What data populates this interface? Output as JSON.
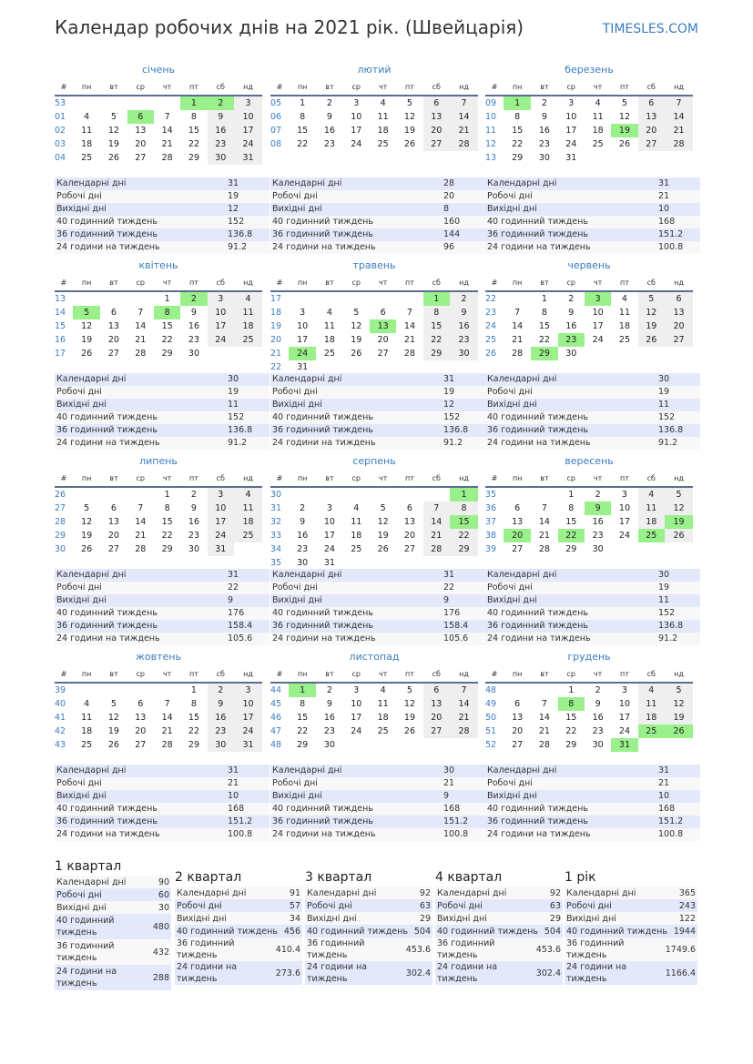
{
  "header": {
    "title": "Календар робочих днів на 2021 рік. (Швейцарія)",
    "brand": "TIMESLES.COM"
  },
  "colors": {
    "holiday": "#9af08a",
    "weekend": "#efefef",
    "accent": "#3a7cc0"
  },
  "weekday_header": [
    "#",
    "пн",
    "вт",
    "ср",
    "чт",
    "пт",
    "сб",
    "нд"
  ],
  "stat_labels": [
    "Календарні дні",
    "Робочі дні",
    "Вихідні дні",
    "40 годинний тиждень",
    "36 годинний тиждень",
    "24 години на тиждень"
  ],
  "months": [
    {
      "name": "січень",
      "start_weekday": 5,
      "days": 31,
      "weeks": [
        "53",
        "01",
        "02",
        "03",
        "04"
      ],
      "holidays": [
        1,
        2,
        6
      ],
      "stats": [
        "31",
        "19",
        "12",
        "152",
        "136.8",
        "91.2"
      ]
    },
    {
      "name": "лютий",
      "start_weekday": 1,
      "days": 28,
      "weeks": [
        "05",
        "06",
        "07",
        "08"
      ],
      "holidays": [],
      "stats": [
        "28",
        "20",
        "8",
        "160",
        "144",
        "96"
      ]
    },
    {
      "name": "березень",
      "start_weekday": 1,
      "days": 31,
      "weeks": [
        "09",
        "10",
        "11",
        "12",
        "13"
      ],
      "holidays": [
        1,
        19
      ],
      "stats": [
        "31",
        "21",
        "10",
        "168",
        "151.2",
        "100.8"
      ]
    },
    {
      "name": "квітень",
      "start_weekday": 4,
      "days": 30,
      "weeks": [
        "13",
        "14",
        "15",
        "16",
        "17"
      ],
      "holidays": [
        2,
        5,
        8
      ],
      "stats": [
        "30",
        "19",
        "11",
        "152",
        "136.8",
        "91.2"
      ]
    },
    {
      "name": "травень",
      "start_weekday": 6,
      "days": 31,
      "weeks": [
        "17",
        "18",
        "19",
        "20",
        "21",
        "22"
      ],
      "holidays": [
        1,
        13,
        24
      ],
      "stats": [
        "31",
        "19",
        "12",
        "152",
        "136.8",
        "91.2"
      ]
    },
    {
      "name": "червень",
      "start_weekday": 2,
      "days": 30,
      "weeks": [
        "22",
        "23",
        "24",
        "25",
        "26"
      ],
      "holidays": [
        3,
        23,
        29
      ],
      "stats": [
        "30",
        "19",
        "11",
        "152",
        "136.8",
        "91.2"
      ]
    },
    {
      "name": "липень",
      "start_weekday": 4,
      "days": 31,
      "weeks": [
        "26",
        "27",
        "28",
        "29",
        "30"
      ],
      "holidays": [],
      "stats": [
        "31",
        "22",
        "9",
        "176",
        "158.4",
        "105.6"
      ]
    },
    {
      "name": "серпень",
      "start_weekday": 7,
      "days": 31,
      "weeks": [
        "30",
        "31",
        "32",
        "33",
        "34",
        "35"
      ],
      "holidays": [
        1,
        15
      ],
      "stats": [
        "31",
        "22",
        "9",
        "176",
        "158.4",
        "105.6"
      ]
    },
    {
      "name": "вересень",
      "start_weekday": 3,
      "days": 30,
      "weeks": [
        "35",
        "36",
        "37",
        "38",
        "39"
      ],
      "holidays": [
        9,
        19,
        20,
        22,
        25
      ],
      "stats": [
        "30",
        "19",
        "11",
        "152",
        "136.8",
        "91.2"
      ]
    },
    {
      "name": "жовтень",
      "start_weekday": 5,
      "days": 31,
      "weeks": [
        "39",
        "40",
        "41",
        "42",
        "43"
      ],
      "holidays": [],
      "stats": [
        "31",
        "21",
        "10",
        "168",
        "151.2",
        "100.8"
      ]
    },
    {
      "name": "листопад",
      "start_weekday": 1,
      "days": 30,
      "weeks": [
        "44",
        "45",
        "46",
        "47",
        "48"
      ],
      "holidays": [
        1
      ],
      "stats": [
        "30",
        "21",
        "9",
        "168",
        "151.2",
        "100.8"
      ]
    },
    {
      "name": "грудень",
      "start_weekday": 3,
      "days": 31,
      "weeks": [
        "48",
        "49",
        "50",
        "51",
        "52"
      ],
      "holidays": [
        8,
        25,
        26,
        31
      ],
      "stats": [
        "31",
        "21",
        "10",
        "168",
        "151.2",
        "100.8"
      ]
    }
  ],
  "quarters": [
    {
      "title": "1 квартал",
      "stats": [
        "90",
        "60",
        "30",
        "480",
        "432",
        "288"
      ]
    },
    {
      "title": "2 квартал",
      "stats": [
        "91",
        "57",
        "34",
        "456",
        "410.4",
        "273.6"
      ]
    },
    {
      "title": "3 квартал",
      "stats": [
        "92",
        "63",
        "29",
        "504",
        "453.6",
        "302.4"
      ]
    },
    {
      "title": "4 квартал",
      "stats": [
        "92",
        "63",
        "29",
        "504",
        "453.6",
        "302.4"
      ]
    },
    {
      "title": "1 рік",
      "stats": [
        "365",
        "243",
        "122",
        "1944",
        "1749.6",
        "1166.4"
      ]
    }
  ]
}
